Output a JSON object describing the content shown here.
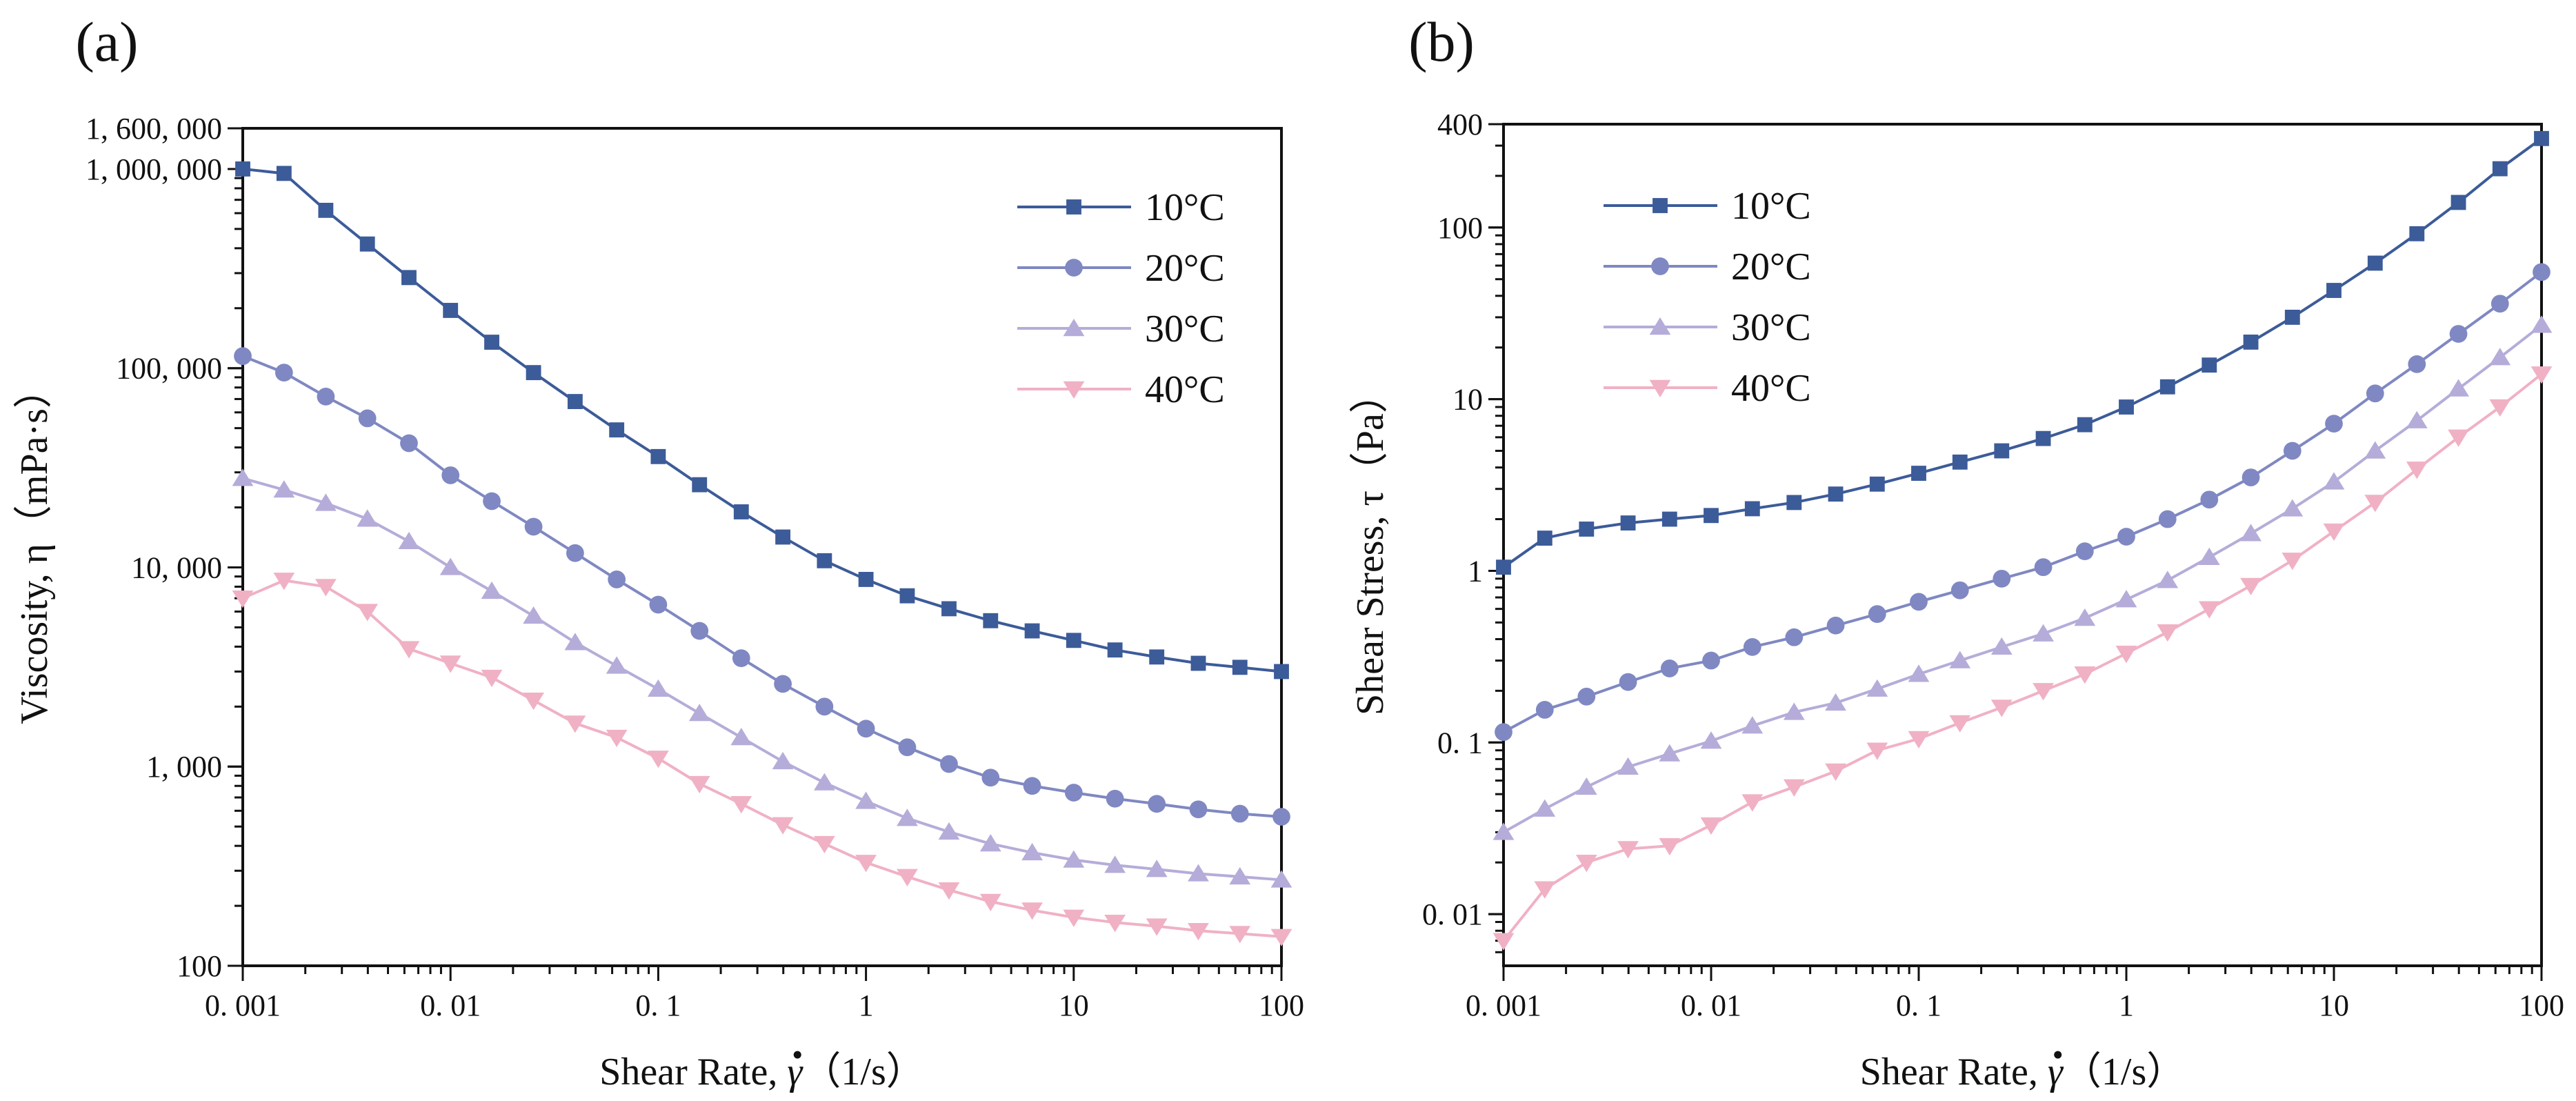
{
  "chart_data": [
    {
      "type": "line",
      "panel_label": "(a)",
      "xlabel": "Shear Rate, γ̇ (1/s)",
      "xlabel_prefix": "Shear Rate, ",
      "xlabel_symbol": "γ",
      "xlabel_suffix": "（1/s）",
      "ylabel": "Viscosity, η（mPa·s）",
      "xscale": "log",
      "yscale": "log",
      "xlim": [
        0.001,
        100
      ],
      "ylim": [
        100,
        1600000
      ],
      "xticks": [
        0.001,
        0.01,
        0.1,
        1,
        10,
        100
      ],
      "xtick_labels": [
        "0. 001",
        "0. 01",
        "0. 1",
        "1",
        "10",
        "100"
      ],
      "yticks": [
        100,
        1000,
        10000,
        100000,
        1000000,
        1600000
      ],
      "ytick_labels": [
        "100",
        "1, 000",
        "10, 000",
        "100, 000",
        "1, 000, 000",
        "1, 600, 000"
      ],
      "legend_position": "top-right",
      "x": [
        0.001,
        0.00158,
        0.00251,
        0.00398,
        0.00631,
        0.01,
        0.0158,
        0.0251,
        0.0398,
        0.0631,
        0.1,
        0.158,
        0.251,
        0.398,
        0.631,
        1,
        1.58,
        2.51,
        3.98,
        6.31,
        10,
        15.8,
        25.1,
        39.8,
        63.1,
        100
      ],
      "series": [
        {
          "name": "10°C",
          "marker": "square",
          "color": "#3c5b99",
          "values": [
            1000000,
            950000,
            620000,
            420000,
            285000,
            195000,
            135000,
            95000,
            68000,
            49000,
            36000,
            26000,
            19000,
            14200,
            10800,
            8700,
            7200,
            6200,
            5400,
            4800,
            4300,
            3850,
            3550,
            3300,
            3150,
            3000
          ]
        },
        {
          "name": "20°C",
          "marker": "circle",
          "color": "#7f88c2",
          "values": [
            115000,
            95000,
            72000,
            56000,
            42000,
            29000,
            21500,
            16000,
            11800,
            8700,
            6500,
            4800,
            3500,
            2600,
            2000,
            1550,
            1250,
            1030,
            880,
            800,
            740,
            690,
            650,
            610,
            580,
            560
          ]
        },
        {
          "name": "30°C",
          "marker": "triangle-up",
          "color": "#b6acd9",
          "values": [
            28000,
            24500,
            21000,
            17500,
            13500,
            10000,
            7600,
            5700,
            4200,
            3200,
            2450,
            1850,
            1400,
            1060,
            830,
            670,
            550,
            470,
            410,
            370,
            340,
            320,
            305,
            290,
            280,
            270
          ]
        },
        {
          "name": "40°C",
          "marker": "triangle-down",
          "color": "#f0b1c4",
          "values": [
            7000,
            8600,
            8000,
            6000,
            3900,
            3300,
            2800,
            2150,
            1650,
            1400,
            1100,
            820,
            650,
            510,
            410,
            330,
            280,
            240,
            210,
            190,
            175,
            165,
            158,
            150,
            145,
            140
          ]
        }
      ]
    },
    {
      "type": "line",
      "panel_label": "(b)",
      "xlabel": "Shear Rate, γ̇ (1/s)",
      "xlabel_prefix": "Shear Rate, ",
      "xlabel_symbol": "γ",
      "xlabel_suffix": "（1/s）",
      "ylabel": "Shear Stress,  τ（Pa）",
      "xscale": "log",
      "yscale": "log",
      "xlim": [
        0.001,
        100
      ],
      "ylim": [
        0.005,
        400
      ],
      "xticks": [
        0.001,
        0.01,
        0.1,
        1,
        10,
        100
      ],
      "xtick_labels": [
        "0. 001",
        "0. 01",
        "0. 1",
        "1",
        "10",
        "100"
      ],
      "yticks": [
        0.01,
        0.1,
        1,
        10,
        100,
        400
      ],
      "ytick_labels": [
        "0. 01",
        "0. 1",
        "1",
        "10",
        "100",
        "400"
      ],
      "legend_position": "top-left",
      "x": [
        0.001,
        0.00158,
        0.00251,
        0.00398,
        0.00631,
        0.01,
        0.0158,
        0.0251,
        0.0398,
        0.0631,
        0.1,
        0.158,
        0.251,
        0.398,
        0.631,
        1,
        1.58,
        2.51,
        3.98,
        6.31,
        10,
        15.8,
        25.1,
        39.8,
        63.1,
        100
      ],
      "series": [
        {
          "name": "10°C",
          "marker": "square",
          "color": "#3c5b99",
          "values": [
            1.05,
            1.55,
            1.75,
            1.9,
            2.0,
            2.1,
            2.3,
            2.5,
            2.8,
            3.2,
            3.7,
            4.3,
            5.0,
            5.9,
            7.1,
            9.0,
            11.8,
            15.8,
            21.5,
            30,
            43,
            62,
            92,
            140,
            220,
            330
          ]
        },
        {
          "name": "20°C",
          "marker": "circle",
          "color": "#7f88c2",
          "values": [
            0.115,
            0.155,
            0.185,
            0.225,
            0.27,
            0.3,
            0.36,
            0.41,
            0.48,
            0.56,
            0.66,
            0.77,
            0.9,
            1.05,
            1.3,
            1.58,
            2.0,
            2.6,
            3.5,
            5.0,
            7.2,
            10.8,
            16,
            24,
            36,
            55
          ]
        },
        {
          "name": "30°C",
          "marker": "triangle-up",
          "color": "#b6acd9",
          "values": [
            0.03,
            0.041,
            0.055,
            0.072,
            0.086,
            0.102,
            0.125,
            0.15,
            0.17,
            0.205,
            0.25,
            0.3,
            0.36,
            0.43,
            0.53,
            0.68,
            0.88,
            1.2,
            1.65,
            2.3,
            3.3,
            5.0,
            7.5,
            11.5,
            17.5,
            27
          ]
        },
        {
          "name": "40°C",
          "marker": "triangle-down",
          "color": "#f0b1c4",
          "values": [
            0.007,
            0.014,
            0.02,
            0.024,
            0.025,
            0.033,
            0.045,
            0.055,
            0.068,
            0.09,
            0.105,
            0.13,
            0.16,
            0.2,
            0.25,
            0.33,
            0.44,
            0.6,
            0.82,
            1.15,
            1.7,
            2.5,
            3.9,
            6.0,
            9.0,
            14
          ]
        }
      ]
    }
  ]
}
